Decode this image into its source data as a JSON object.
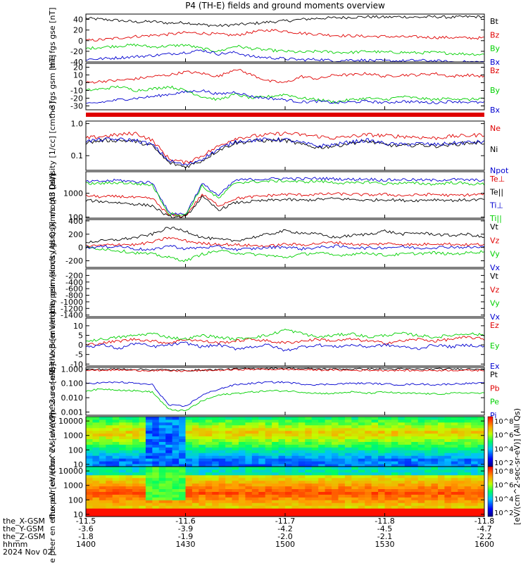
{
  "title": "P4 (TH-E) fields and ground moments overview",
  "footer": {
    "row_labels": [
      "the_X-GSM",
      "the_Y-GSM",
      "the_Z-GSM",
      "hhmm",
      "2024 Nov 02"
    ],
    "columns": [
      {
        "x": "-11.5",
        "y": "-3.6",
        "z": "-1.8",
        "t": "1400"
      },
      {
        "x": "-11.6",
        "y": "-3.9",
        "z": "-1.9",
        "t": "1430"
      },
      {
        "x": "-11.7",
        "y": "-4.2",
        "z": "-2.0",
        "t": "1500"
      },
      {
        "x": "-11.8",
        "y": "-4.5",
        "z": "-2.1",
        "t": "1530"
      },
      {
        "x": "-11.8",
        "y": "-4.7",
        "z": "-2.2",
        "t": "1600"
      }
    ]
  },
  "colorbar": {
    "label": "[eV/(cm^2-sec-sr-eV)] (All Qs)",
    "ticks_upper": [
      "10^8",
      "10^6",
      "10^4",
      "10^2"
    ],
    "ticks_lower": [
      "10^8",
      "10^6",
      "10^4",
      "10^2"
    ]
  },
  "colors": {
    "black": "#000000",
    "red": "#e00000",
    "green": "#00d000",
    "blue": "#0000d0"
  },
  "chart_data": [
    {
      "type": "line",
      "ylabel": "the fgs gse [nT]",
      "ylim": [
        -40,
        50
      ],
      "yticks": [
        "40",
        "20",
        "0",
        "-20",
        "-40"
      ],
      "series": [
        {
          "name": "Bt",
          "color": "#000000",
          "values": [
            42,
            40,
            38,
            35,
            36,
            33,
            34,
            30,
            28,
            30,
            32,
            35,
            37,
            40,
            42,
            43,
            44,
            45,
            44,
            45,
            44,
            45,
            44,
            45,
            45
          ]
        },
        {
          "name": "Bz",
          "color": "#e00000",
          "values": [
            0,
            2,
            5,
            8,
            10,
            12,
            15,
            14,
            12,
            10,
            16,
            20,
            18,
            14,
            12,
            10,
            9,
            8,
            8,
            7,
            7,
            6,
            6,
            5,
            5
          ]
        },
        {
          "name": "By",
          "color": "#00d000",
          "values": [
            -15,
            -12,
            -10,
            -8,
            -12,
            -10,
            -8,
            -15,
            -20,
            -10,
            -15,
            -18,
            -20,
            -22,
            -20,
            -22,
            -22,
            -20,
            -22,
            -22,
            -23,
            -22,
            -24,
            -25,
            -26
          ]
        },
        {
          "name": "Bx",
          "color": "#0000d0",
          "values": [
            -35,
            -34,
            -32,
            -30,
            -28,
            -25,
            -22,
            -18,
            -25,
            -22,
            -30,
            -32,
            -34,
            -36,
            -35,
            -38,
            -36,
            -37,
            -38,
            -38,
            -37,
            -38,
            -40,
            -40,
            -40
          ]
        }
      ]
    },
    {
      "type": "line",
      "ylabel": "the fgs gsm [nT]",
      "ylim": [
        -35,
        25
      ],
      "yticks": [
        "20",
        "10",
        "0",
        "-10",
        "-20",
        "-30"
      ],
      "series": [
        {
          "name": "Bz",
          "color": "#e00000",
          "values": [
            0,
            2,
            3,
            5,
            8,
            10,
            14,
            12,
            8,
            18,
            10,
            2,
            0,
            8,
            5,
            10,
            10,
            12,
            8,
            10,
            10,
            12,
            8,
            10,
            8
          ]
        },
        {
          "name": "By",
          "color": "#00d000",
          "values": [
            -10,
            -8,
            -5,
            -10,
            -8,
            -5,
            -10,
            -18,
            -22,
            -15,
            -20,
            -18,
            -15,
            -20,
            -22,
            -25,
            -22,
            -20,
            -22,
            -18,
            -20,
            -22,
            -20,
            -22,
            -20
          ]
        },
        {
          "name": "Bx",
          "color": "#0000d0",
          "values": [
            -28,
            -25,
            -22,
            -20,
            -18,
            -15,
            -12,
            -10,
            -15,
            -12,
            -18,
            -20,
            -22,
            -25,
            -24,
            -26,
            -25,
            -24,
            -26,
            -24,
            -25,
            -26,
            -24,
            -25,
            -26
          ]
        }
      ]
    },
    {
      "type": "line",
      "ylabel": "Density [1/cc] [cm^-3]",
      "yscale": "log",
      "ylim": [
        0.035,
        1.2
      ],
      "yticks": [
        "1.0",
        "0.1"
      ],
      "series": [
        {
          "name": "Ne",
          "color": "#e00000",
          "values": [
            0.35,
            0.4,
            0.45,
            0.5,
            0.3,
            0.08,
            0.06,
            0.1,
            0.2,
            0.35,
            0.4,
            0.45,
            0.5,
            0.45,
            0.4,
            0.35,
            0.4,
            0.45,
            0.42,
            0.4,
            0.38,
            0.35,
            0.4,
            0.42,
            0.45
          ]
        },
        {
          "name": "Ni",
          "color": "#000000",
          "values": [
            0.25,
            0.3,
            0.3,
            0.28,
            0.2,
            0.06,
            0.045,
            0.07,
            0.15,
            0.25,
            0.28,
            0.3,
            0.3,
            0.22,
            0.18,
            0.2,
            0.25,
            0.28,
            0.22,
            0.2,
            0.22,
            0.2,
            0.22,
            0.25,
            0.25
          ]
        },
        {
          "name": "Npot",
          "color": "#0000d0",
          "values": [
            0.28,
            0.32,
            0.32,
            0.3,
            0.22,
            0.07,
            0.05,
            0.08,
            0.16,
            0.28,
            0.3,
            0.32,
            0.32,
            0.25,
            0.2,
            0.22,
            0.27,
            0.3,
            0.24,
            0.22,
            0.24,
            0.22,
            0.24,
            0.26,
            0.27
          ]
        }
      ]
    },
    {
      "type": "line",
      "ylabel": "moqt3 [eV]",
      "yscale": "log",
      "ylim": [
        90,
        8000
      ],
      "yticks": [
        "1000",
        "100"
      ],
      "series": [
        {
          "name": "Te⊥",
          "color": "#e00000",
          "values": [
            800,
            700,
            750,
            650,
            600,
            120,
            110,
            900,
            300,
            600,
            700,
            800,
            900,
            850,
            900,
            950,
            900,
            850,
            900,
            800,
            850,
            900,
            800,
            850,
            900
          ]
        },
        {
          "name": "Te||",
          "color": "#000000",
          "values": [
            500,
            450,
            400,
            350,
            300,
            100,
            100,
            700,
            200,
            400,
            450,
            500,
            550,
            500,
            550,
            600,
            550,
            500,
            550,
            500,
            500,
            550,
            500,
            520,
            550
          ]
        },
        {
          "name": "Ti⊥",
          "color": "#0000d0",
          "values": [
            3000,
            3200,
            3500,
            3000,
            2800,
            150,
            130,
            2500,
            800,
            3500,
            3800,
            4000,
            4200,
            4000,
            4200,
            4000,
            3800,
            4000,
            3500,
            3800,
            3600,
            3500,
            3800,
            3600,
            3500
          ]
        },
        {
          "name": "Ti||",
          "color": "#00d000",
          "values": [
            2500,
            2600,
            2800,
            2500,
            2200,
            140,
            120,
            2000,
            600,
            2800,
            3000,
            3200,
            3300,
            3000,
            3200,
            2800,
            2600,
            3000,
            2500,
            2700,
            2600,
            2400,
            2800,
            2500,
            2400
          ]
        }
      ]
    },
    {
      "type": "line",
      "ylabel": "the peir velocity gsm [km/s (All Qs)]",
      "ylim": [
        -300,
        420
      ],
      "yticks": [
        "400",
        "200",
        "0",
        "-200"
      ],
      "series": [
        {
          "name": "Vt",
          "color": "#000000",
          "values": [
            80,
            100,
            120,
            150,
            200,
            300,
            250,
            150,
            120,
            100,
            150,
            200,
            250,
            220,
            200,
            150,
            180,
            200,
            250,
            200,
            220,
            200,
            180,
            200,
            150
          ]
        },
        {
          "name": "Vz",
          "color": "#e00000",
          "values": [
            20,
            30,
            50,
            40,
            80,
            150,
            100,
            60,
            50,
            40,
            30,
            20,
            50,
            40,
            60,
            80,
            50,
            40,
            60,
            50,
            40,
            60,
            50,
            40,
            50
          ]
        },
        {
          "name": "Vy",
          "color": "#00d000",
          "values": [
            0,
            -20,
            -50,
            -80,
            -100,
            -150,
            -200,
            -100,
            -50,
            -80,
            -100,
            -120,
            -150,
            -100,
            -80,
            -120,
            -100,
            -80,
            -120,
            -100,
            -90,
            -80,
            -100,
            -80,
            -60
          ]
        },
        {
          "name": "Vx",
          "color": "#0000d0",
          "values": [
            0,
            10,
            20,
            -20,
            -40,
            30,
            -20,
            0,
            10,
            -30,
            -20,
            0,
            10,
            -20,
            0,
            20,
            0,
            -10,
            0,
            10,
            -10,
            0,
            10,
            0,
            10
          ]
        }
      ]
    },
    {
      "type": "line",
      "ylabel": "the peer velocity gsm [km/s (All Qs)]",
      "ylim": [
        -1450,
        0
      ],
      "yticks": [
        "-200",
        "-400",
        "-600",
        "-800",
        "-1000",
        "-1200",
        "-1400"
      ],
      "series": [
        {
          "name": "Vt",
          "color": "#000000",
          "values": []
        },
        {
          "name": "Vz",
          "color": "#e00000",
          "values": []
        },
        {
          "name": "Vy",
          "color": "#00d000",
          "values": []
        },
        {
          "name": "Vx",
          "color": "#0000d0",
          "values": []
        }
      ]
    },
    {
      "type": "line",
      "ylabel": "E=-VxB [mV/m]",
      "ylim": [
        -11,
        14
      ],
      "yticks": [
        "10",
        "5",
        "0",
        "-5",
        "-10"
      ],
      "series": [
        {
          "name": "Ez",
          "color": "#e00000",
          "values": [
            0,
            1,
            2,
            3,
            2,
            1,
            3,
            2,
            1,
            2,
            3,
            2,
            1,
            2,
            3,
            2,
            3,
            2,
            1,
            2,
            3,
            2,
            3,
            4,
            3
          ]
        },
        {
          "name": "Ey",
          "color": "#00d000",
          "values": [
            2,
            3,
            4,
            5,
            6,
            4,
            3,
            5,
            4,
            3,
            4,
            5,
            8,
            6,
            4,
            5,
            6,
            4,
            5,
            6,
            5,
            4,
            5,
            6,
            5
          ]
        },
        {
          "name": "Ex",
          "color": "#0000d0",
          "values": [
            -1,
            0,
            -2,
            1,
            -1,
            0,
            1,
            -1,
            0,
            -2,
            -1,
            0,
            -3,
            -1,
            0,
            -1,
            0,
            -1,
            0,
            -1,
            -2,
            0,
            -1,
            0,
            -1
          ]
        }
      ]
    },
    {
      "type": "line",
      "ylabel": "Pressure [nPa]",
      "yscale": "log",
      "ylim": [
        0.0006,
        1.3
      ],
      "yticks": [
        "1.000",
        "0.100",
        "0.010",
        "0.001"
      ],
      "series": [
        {
          "name": "Pt",
          "color": "#000000",
          "values": [
            0.9,
            0.95,
            1.0,
            0.95,
            0.9,
            0.85,
            0.8,
            0.85,
            0.9,
            1.0,
            1.05,
            1.1,
            1.1,
            1.05,
            1.0,
            1.0,
            1.0,
            1.0,
            1.0,
            1.0,
            0.95,
            1.0,
            1.0,
            1.0,
            1.0
          ]
        },
        {
          "name": "Pb",
          "color": "#e00000",
          "values": [
            0.8,
            0.82,
            0.85,
            0.8,
            0.78,
            0.75,
            0.72,
            0.78,
            0.82,
            0.9,
            0.95,
            0.95,
            0.95,
            0.9,
            0.85,
            0.85,
            0.8,
            0.82,
            0.8,
            0.8,
            0.78,
            0.8,
            0.82,
            0.8,
            0.8
          ]
        },
        {
          "name": "Pe",
          "color": "#00d000",
          "values": [
            0.03,
            0.04,
            0.035,
            0.03,
            0.025,
            0.0015,
            0.0012,
            0.006,
            0.015,
            0.02,
            0.025,
            0.03,
            0.03,
            0.025,
            0.02,
            0.02,
            0.025,
            0.02,
            0.025,
            0.02,
            0.02,
            0.018,
            0.02,
            0.022,
            0.02
          ]
        },
        {
          "name": "Pi",
          "color": "#0000d0",
          "values": [
            0.1,
            0.11,
            0.12,
            0.1,
            0.08,
            0.003,
            0.0025,
            0.015,
            0.04,
            0.08,
            0.1,
            0.12,
            0.12,
            0.09,
            0.08,
            0.09,
            0.1,
            0.1,
            0.09,
            0.08,
            0.09,
            0.08,
            0.09,
            0.1,
            0.1
          ]
        }
      ]
    },
    {
      "type": "heatmap",
      "ylabel": "the peir en eflux eV [eV/(cm^2-s-sr-eV)]",
      "yscale": "log",
      "ylim": [
        7,
        20000
      ],
      "yticks": [
        "10000",
        "1000",
        "100",
        "10"
      ]
    },
    {
      "type": "heatmap",
      "ylabel": "the peer en eflux eV [eV/(cm^2-s-sr-eV)]",
      "yscale": "log",
      "ylim": [
        7,
        20000
      ],
      "yticks": [
        "10000",
        "1000",
        "100",
        "10"
      ]
    }
  ]
}
